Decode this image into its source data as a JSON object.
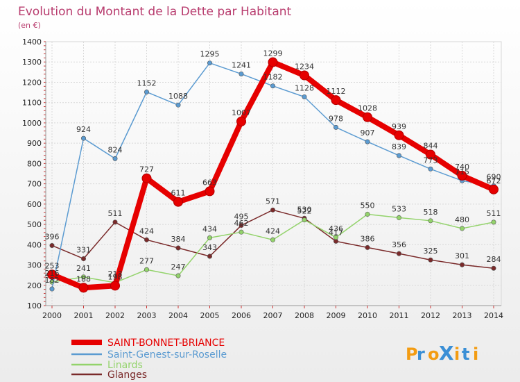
{
  "chart_data": {
    "type": "line",
    "title": "Evolution du Montant de la Dette par Habitant",
    "subtitle": "(en €)",
    "x": [
      "2000",
      "2001",
      "2002",
      "2003",
      "2004",
      "2005",
      "2006",
      "2007",
      "2008",
      "2009",
      "2010",
      "2011",
      "2012",
      "2013",
      "2014"
    ],
    "ylim": [
      100,
      1400
    ],
    "yticks": [
      100,
      200,
      300,
      400,
      500,
      600,
      700,
      800,
      900,
      1000,
      1100,
      1200,
      1300,
      1400
    ],
    "grid": true,
    "legend_position": "bottom-left",
    "series": [
      {
        "name": "SAINT-BONNET-BRIANCE",
        "color": "#e60000",
        "values": [
          253,
          188,
          198,
          727,
          611,
          663,
          1007,
          1299,
          1234,
          1112,
          1028,
          939,
          844,
          740,
          672
        ]
      },
      {
        "name": "Saint-Genest-sur-Roselle",
        "color": "#5b9bd1",
        "values": [
          182,
          924,
          824,
          1152,
          1088,
          1295,
          1241,
          1182,
          1128,
          978,
          907,
          839,
          773,
          715,
          690
        ]
      },
      {
        "name": "Linards",
        "color": "#93d36b",
        "values": [
          216,
          241,
          213,
          277,
          247,
          434,
          462,
          424,
          522,
          436,
          550,
          533,
          518,
          480,
          511
        ]
      },
      {
        "name": "Glanges",
        "color": "#7a2a2a",
        "values": [
          396,
          331,
          511,
          424,
          384,
          343,
          495,
          571,
          530,
          417,
          386,
          356,
          325,
          301,
          284
        ]
      }
    ],
    "data_labels": [
      [
        "253",
        "188",
        "198",
        "727",
        "611",
        "663",
        "1007",
        "1299",
        "1234",
        "1112",
        "1028",
        "939",
        "844",
        "740",
        "672"
      ],
      [
        "182",
        "924",
        "824",
        "1152",
        "1088",
        "1295",
        "1241",
        "1182",
        "1128",
        "978",
        "907",
        "839",
        "773",
        "715",
        "690"
      ],
      [
        "216",
        "241",
        "213",
        "277",
        "247",
        "434",
        "462",
        "424",
        "522",
        "436",
        "550",
        "533",
        "518",
        "480",
        "511"
      ],
      [
        "396",
        "331",
        "511",
        "424",
        "384",
        "343",
        "495",
        "571",
        "530",
        "417",
        "386",
        "356",
        "325",
        "301",
        "284"
      ]
    ]
  },
  "brand": {
    "text": "ProXiti",
    "letters": [
      "P",
      "r",
      "o",
      "X",
      "i",
      "t",
      "i"
    ],
    "colors": [
      "#f39c12",
      "#3a8fd6",
      "#f39c12",
      "#3a8fd6",
      "#f39c12",
      "#3a8fd6",
      "#f39c12"
    ]
  }
}
